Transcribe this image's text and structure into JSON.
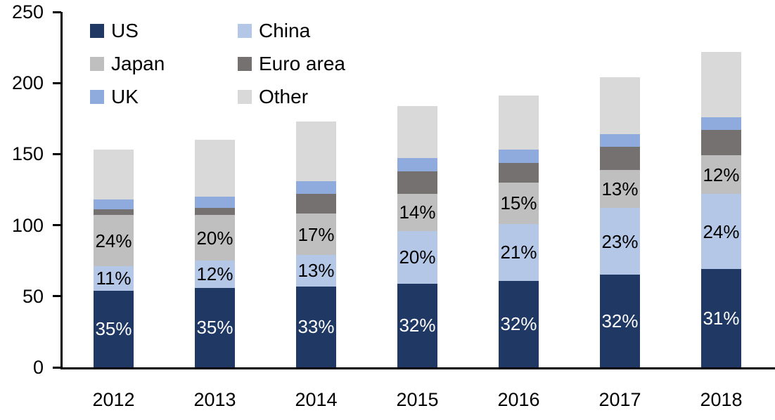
{
  "chart_data": {
    "type": "bar",
    "stacked": true,
    "title": "",
    "xlabel": "",
    "ylabel": "",
    "ylim": [
      0,
      250
    ],
    "yticks": [
      0,
      50,
      100,
      150,
      200,
      250
    ],
    "ytick_labels": [
      "0",
      "50",
      "100",
      "150",
      "200",
      "250"
    ],
    "grid": false,
    "legend_position": "top-left",
    "background_color": "#ffffff",
    "axis_color": "#000000",
    "categories": [
      "2012",
      "2013",
      "2014",
      "2015",
      "2016",
      "2017",
      "2018"
    ],
    "totals": [
      153,
      160,
      173,
      184,
      191,
      204,
      222
    ],
    "series": [
      {
        "name": "US",
        "color": "#1f3864",
        "values": [
          54,
          56,
          57,
          59,
          61,
          65,
          69
        ],
        "segment_labels": [
          "35%",
          "35%",
          "33%",
          "32%",
          "32%",
          "32%",
          "31%"
        ],
        "segment_label_color": "#ffffff"
      },
      {
        "name": "China",
        "color": "#b4c7e7",
        "values": [
          17,
          19,
          22,
          37,
          40,
          47,
          53
        ],
        "segment_labels": [
          "11%",
          "12%",
          "13%",
          "20%",
          "21%",
          "23%",
          "24%"
        ],
        "segment_label_color": "#000000"
      },
      {
        "name": "Japan",
        "color": "#bfbfbf",
        "values": [
          36,
          32,
          29,
          26,
          29,
          27,
          27
        ],
        "segment_labels": [
          "24%",
          "20%",
          "17%",
          "14%",
          "15%",
          "13%",
          "12%"
        ],
        "segment_label_color": "#000000"
      },
      {
        "name": "Euro area",
        "color": "#767171",
        "values": [
          4,
          5,
          14,
          16,
          14,
          16,
          18
        ],
        "segment_labels": [
          "",
          "",
          "",
          "",
          "",
          "",
          ""
        ],
        "segment_label_color": "#000000"
      },
      {
        "name": "UK",
        "color": "#8faadc",
        "values": [
          7,
          8,
          9,
          9,
          9,
          9,
          9
        ],
        "segment_labels": [
          "",
          "",
          "",
          "",
          "",
          "",
          ""
        ],
        "segment_label_color": "#000000"
      },
      {
        "name": "Other",
        "color": "#d9d9d9",
        "values": [
          35,
          40,
          42,
          37,
          38,
          40,
          46
        ],
        "segment_labels": [
          "",
          "",
          "",
          "",
          "",
          "",
          ""
        ],
        "segment_label_color": "#000000"
      }
    ]
  }
}
